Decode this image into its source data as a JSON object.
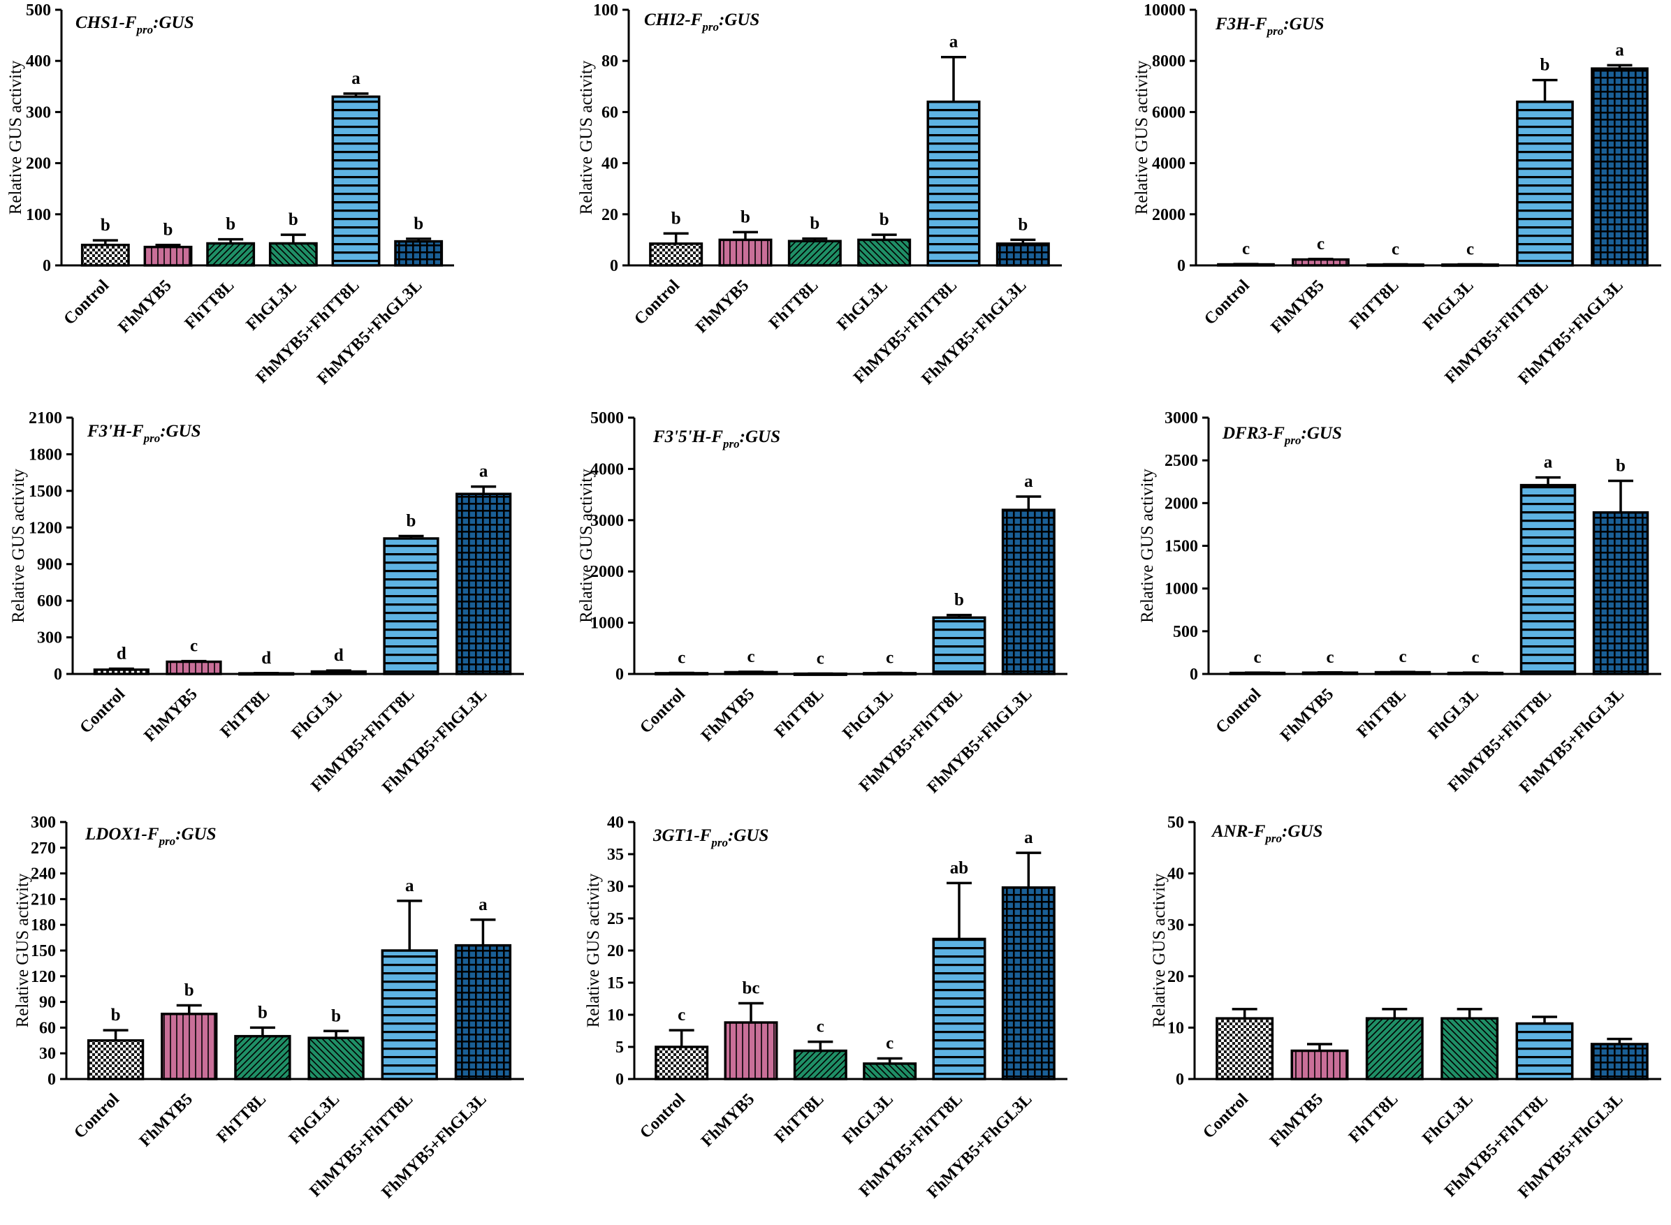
{
  "colors": {
    "control_fill": "#ffffff",
    "control_pattern": "#1a1a1a",
    "fhmyb5": "#c96f98",
    "fhtt8l": "#1f8f66",
    "fhgl3l": "#1f8f66",
    "fhmyb5_fhtt8l": "#5eb3e3",
    "fhmyb5_fhgl3l": "#1a5f96",
    "pattern_line": "#000000"
  },
  "chart_data": [
    {
      "type": "bar",
      "title_main": "CHS1-F",
      "title_sub": "pro",
      "title_tail": ":GUS",
      "ylabel": "Relative GUS activity",
      "ylim": [
        0,
        500
      ],
      "yticks": [
        "0",
        "100",
        "200",
        "300",
        "400",
        "500"
      ],
      "categories": [
        "Control",
        "FhMYB5",
        "FhTT8L",
        "FhGL3L",
        "FhMYB5+FhTT8L",
        "FhMYB5+FhGL3L"
      ],
      "values": [
        40,
        36,
        43,
        43,
        330,
        47
      ],
      "errors": [
        9,
        4,
        8,
        17,
        6,
        5
      ],
      "letters": [
        "b",
        "b",
        "b",
        "b",
        "a",
        "b"
      ]
    },
    {
      "type": "bar",
      "title_main": "CHI2-F",
      "title_sub": "pro",
      "title_tail": ":GUS",
      "ylabel": "Relative GUS activity",
      "ylim": [
        0,
        100
      ],
      "yticks": [
        "0",
        "20",
        "40",
        "60",
        "80",
        "100"
      ],
      "categories": [
        "Control",
        "FhMYB5",
        "FhTT8L",
        "FhGL3L",
        "FhMYB5+FhTT8L",
        "FhMYB5+FhGL3L"
      ],
      "values": [
        8.5,
        10,
        9.5,
        10,
        64,
        8.5
      ],
      "errors": [
        4,
        3,
        1,
        2,
        17.5,
        1.5
      ],
      "letters": [
        "b",
        "b",
        "b",
        "b",
        "a",
        "b"
      ]
    },
    {
      "type": "bar",
      "title_main": "F3H-F",
      "title_sub": "pro",
      "title_tail": ":GUS",
      "ylabel": "Relative GUS activity",
      "ylim": [
        0,
        10000
      ],
      "yticks": [
        "0",
        "2000",
        "4000",
        "6000",
        "8000",
        "10000"
      ],
      "categories": [
        "Control",
        "FhMYB5",
        "FhTT8L",
        "FhGL3L",
        "FhMYB5+FhTT8L",
        "FhMYB5+FhGL3L"
      ],
      "values": [
        40,
        230,
        30,
        30,
        6400,
        7700
      ],
      "errors": [
        10,
        20,
        10,
        10,
        850,
        130
      ],
      "letters": [
        "c",
        "c",
        "c",
        "c",
        "b",
        "a"
      ]
    },
    {
      "type": "bar",
      "title_main": "F3'H-F",
      "title_sub": "pro",
      "title_tail": ":GUS",
      "ylabel": "Relative GUS activity",
      "ylim": [
        0,
        2100
      ],
      "yticks": [
        "0",
        "300",
        "600",
        "900",
        "1200",
        "1500",
        "1800",
        "2100"
      ],
      "categories": [
        "Control",
        "FhMYB5",
        "FhTT8L",
        "FhGL3L",
        "FhMYB5+FhTT8L",
        "FhMYB5+FhGL3L"
      ],
      "values": [
        35,
        100,
        5,
        20,
        1110,
        1475
      ],
      "errors": [
        8,
        5,
        2,
        8,
        20,
        60
      ],
      "letters": [
        "d",
        "c",
        "d",
        "d",
        "b",
        "a"
      ]
    },
    {
      "type": "bar",
      "title_main": "F3'5'H-F",
      "title_sub": "pro",
      "title_tail": ":GUS",
      "ylabel": "Relative GUS activity",
      "ylim": [
        0,
        5000
      ],
      "yticks": [
        "0",
        "1000",
        "2000",
        "3000",
        "4000",
        "5000"
      ],
      "categories": [
        "Control",
        "FhMYB5",
        "FhTT8L",
        "FhGL3L",
        "FhMYB5+FhTT8L",
        "FhMYB5+FhGL3L"
      ],
      "values": [
        15,
        35,
        5,
        15,
        1100,
        3200
      ],
      "errors": [
        5,
        8,
        2,
        5,
        50,
        260
      ],
      "letters": [
        "c",
        "c",
        "c",
        "c",
        "b",
        "a"
      ]
    },
    {
      "type": "bar",
      "title_main": "DFR3-F",
      "title_sub": "pro",
      "title_tail": ":GUS",
      "ylabel": "Relative GUS activity",
      "ylim": [
        0,
        3000
      ],
      "yticks": [
        "0",
        "500",
        "1000",
        "1500",
        "2000",
        "2500",
        "3000"
      ],
      "categories": [
        "Control",
        "FhMYB5",
        "FhTT8L",
        "FhGL3L",
        "FhMYB5+FhTT8L",
        "FhMYB5+FhGL3L"
      ],
      "values": [
        12,
        15,
        20,
        12,
        2210,
        1890
      ],
      "errors": [
        3,
        3,
        4,
        3,
        90,
        370
      ],
      "letters": [
        "c",
        "c",
        "c",
        "c",
        "a",
        "b"
      ]
    },
    {
      "type": "bar",
      "title_main": "LDOX1-F",
      "title_sub": "pro",
      "title_tail": ":GUS",
      "ylabel": "Relative GUS activity",
      "ylim": [
        0,
        300
      ],
      "yticks": [
        "0",
        "30",
        "60",
        "90",
        "120",
        "150",
        "180",
        "210",
        "240",
        "270",
        "300"
      ],
      "categories": [
        "Control",
        "FhMYB5",
        "FhTT8L",
        "FhGL3L",
        "FhMYB5+FhTT8L",
        "FhMYB5+FhGL3L"
      ],
      "values": [
        45,
        76,
        50,
        48,
        150,
        156
      ],
      "errors": [
        12,
        10,
        10,
        8,
        58,
        30
      ],
      "letters": [
        "b",
        "b",
        "b",
        "b",
        "a",
        "a"
      ]
    },
    {
      "type": "bar",
      "title_main": "3GT1-F",
      "title_sub": "pro",
      "title_tail": ":GUS",
      "ylabel": "Relative GUS activity",
      "ylim": [
        0,
        40
      ],
      "yticks": [
        "0",
        "5",
        "10",
        "15",
        "20",
        "25",
        "30",
        "35",
        "40"
      ],
      "categories": [
        "Control",
        "FhMYB5",
        "FhTT8L",
        "FhGL3L",
        "FhMYB5+FhTT8L",
        "FhMYB5+FhGL3L"
      ],
      "values": [
        5,
        8.8,
        4.4,
        2.4,
        21.8,
        29.8
      ],
      "errors": [
        2.6,
        3,
        1.4,
        0.8,
        8.7,
        5.4
      ],
      "letters": [
        "c",
        "bc",
        "c",
        "c",
        "ab",
        "a"
      ]
    },
    {
      "type": "bar",
      "title_main": "ANR-F",
      "title_sub": "pro",
      "title_tail": ":GUS",
      "ylabel": "Relative GUS activity",
      "ylim": [
        0,
        50
      ],
      "yticks": [
        "0",
        "10",
        "20",
        "30",
        "40",
        "50"
      ],
      "categories": [
        "Control",
        "FhMYB5",
        "FhTT8L",
        "FhGL3L",
        "FhMYB5+FhTT8L",
        "FhMYB5+FhGL3L"
      ],
      "values": [
        11.8,
        5.5,
        11.8,
        11.8,
        10.8,
        6.8
      ],
      "errors": [
        1.8,
        1.3,
        1.8,
        1.8,
        1.3,
        1
      ],
      "letters": []
    }
  ]
}
